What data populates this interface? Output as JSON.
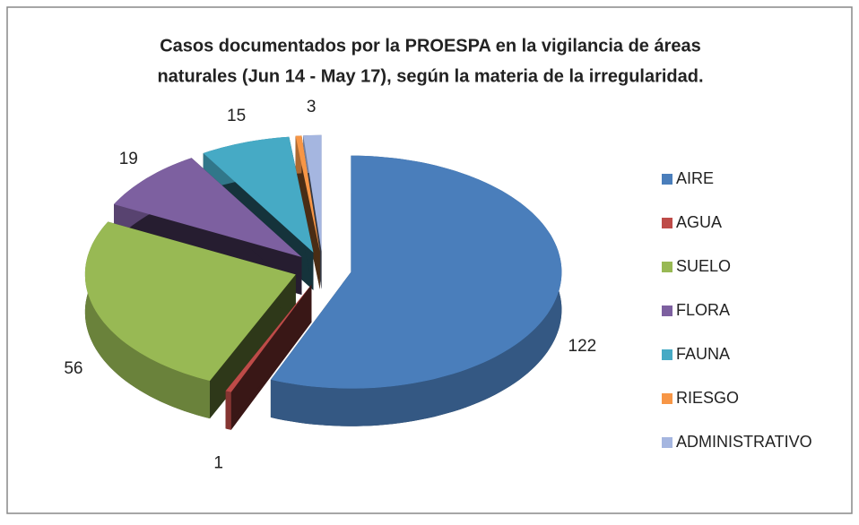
{
  "chart_data": {
    "type": "pie3d",
    "title": "Casos documentados por la PROESPA en la vigilancia de áreas",
    "subtitle": "naturales (Jun 14 - May 17), según la materia de la irregularidad.",
    "categories": [
      "AIRE",
      "AGUA",
      "SUELO",
      "FLORA",
      "FAUNA",
      "RIESGO",
      "ADMINISTRATIVO"
    ],
    "values": [
      122,
      1,
      56,
      19,
      15,
      1,
      3
    ],
    "value_labels": [
      "122",
      "1",
      "56",
      "19",
      "15",
      null,
      "3"
    ],
    "colors": [
      "#4a7ebb",
      "#be4b48",
      "#98b954",
      "#7d60a0",
      "#46aac5",
      "#f79646",
      "#a5b6e0"
    ],
    "legend": "right"
  }
}
